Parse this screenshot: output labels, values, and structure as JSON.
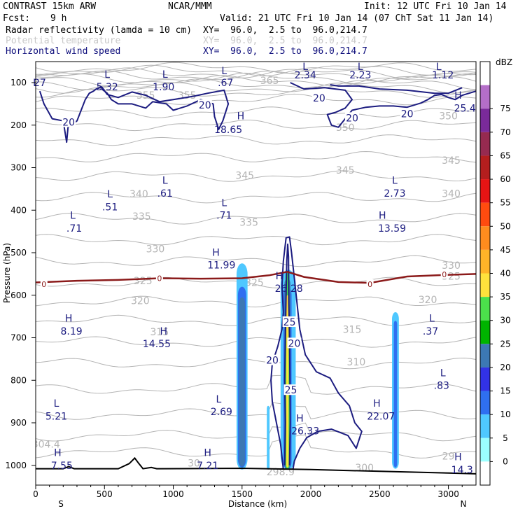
{
  "header": {
    "model": "CONTRAST 15km ARW",
    "org": "NCAR/MMM",
    "init": "Init: 12 UTC Fri 10 Jan 14",
    "fcst_label": "Fcst:",
    "fcst_value": "9 h",
    "valid": "Valid: 21 UTC Fri 10 Jan 14 (07 ChT Sat 11 Jan 14)",
    "fields": [
      {
        "name": "Radar reflectivity (lamda = 10 cm)",
        "xy": "XY=  96.0,  2.5 to  96.0,214.7"
      },
      {
        "name": "Potential temperature",
        "xy": "XY=  96.0,  2.5 to  96.0,214.7"
      },
      {
        "name": "Horizontal wind speed",
        "xy": "XY=  96.0,  2.5 to  96.0,214.7"
      }
    ]
  },
  "colors": {
    "theta": "#b4b4b4",
    "wind": "#1c1c80",
    "freezing": "#8b1a1a",
    "terrain": "#000000"
  },
  "chart_data": {
    "type": "cross-section",
    "xlabel": "Distance (km)",
    "ylabel": "Pressure (hPa)",
    "xlim": [
      0,
      3200
    ],
    "ylim": [
      1060,
      50
    ],
    "xticks": [
      0,
      500,
      1000,
      1500,
      2000,
      2500,
      3000
    ],
    "yticks": [
      100,
      200,
      300,
      400,
      500,
      600,
      700,
      800,
      900,
      1000
    ],
    "end_labels": {
      "left": "S",
      "right": "N"
    },
    "colorbar": {
      "unit": "dBZ",
      "levels": [
        0,
        5,
        10,
        15,
        20,
        25,
        30,
        35,
        40,
        45,
        50,
        55,
        60,
        65,
        70,
        75
      ],
      "colors": [
        "#ffffff",
        "#9bffff",
        "#4fc8ff",
        "#2f6ff0",
        "#3232e6",
        "#3c78b4",
        "#00b400",
        "#4be04b",
        "#ffe23c",
        "#ffb428",
        "#ff8c1e",
        "#ff4b0f",
        "#e61414",
        "#b41e1e",
        "#962a50",
        "#7a2a9a",
        "#b46ec8",
        "#ffffff"
      ]
    },
    "theta_labels": [
      {
        "text": "365",
        "x": 1700,
        "p": 95
      },
      {
        "text": "355",
        "x": 800,
        "p": 130
      },
      {
        "text": "355",
        "x": 1100,
        "p": 130
      },
      {
        "text": "350",
        "x": 2250,
        "p": 205
      },
      {
        "text": "350",
        "x": 3000,
        "p": 178
      },
      {
        "text": "345",
        "x": 1520,
        "p": 318
      },
      {
        "text": "345",
        "x": 2250,
        "p": 306
      },
      {
        "text": "345",
        "x": 3020,
        "p": 283
      },
      {
        "text": "340",
        "x": 750,
        "p": 362
      },
      {
        "text": "340",
        "x": 3020,
        "p": 361
      },
      {
        "text": "335",
        "x": 770,
        "p": 414
      },
      {
        "text": "335",
        "x": 1550,
        "p": 428
      },
      {
        "text": "330",
        "x": 870,
        "p": 491
      },
      {
        "text": "330",
        "x": 3020,
        "p": 530
      },
      {
        "text": "325",
        "x": 780,
        "p": 566
      },
      {
        "text": "325",
        "x": 1590,
        "p": 570
      },
      {
        "text": "325",
        "x": 3020,
        "p": 555
      },
      {
        "text": "320",
        "x": 760,
        "p": 613
      },
      {
        "text": "320",
        "x": 2850,
        "p": 610
      },
      {
        "text": "315",
        "x": 900,
        "p": 686
      },
      {
        "text": "315",
        "x": 2300,
        "p": 680
      },
      {
        "text": "310",
        "x": 2330,
        "p": 757
      },
      {
        "text": "304.4",
        "x": 75,
        "p": 950
      },
      {
        "text": "30",
        "x": 1150,
        "p": 995
      },
      {
        "text": "298.9",
        "x": 1780,
        "p": 1015
      },
      {
        "text": "300",
        "x": 2390,
        "p": 1005
      },
      {
        "text": "29",
        "x": 3000,
        "p": 978
      }
    ],
    "wind_labels": [
      {
        "text": "20",
        "x": 240,
        "p": 193
      },
      {
        "text": "20",
        "x": 1230,
        "p": 153
      },
      {
        "text": "20",
        "x": 2060,
        "p": 136
      },
      {
        "text": "20",
        "x": 2300,
        "p": 183
      },
      {
        "text": "20",
        "x": 2700,
        "p": 173
      },
      {
        "text": "20",
        "x": 1720,
        "p": 753
      },
      {
        "text": "20",
        "x": 1880,
        "p": 713
      },
      {
        "text": "25",
        "x": 1845,
        "p": 663
      },
      {
        "text": "25",
        "x": 1855,
        "p": 823
      }
    ],
    "freezing_label": {
      "text": "0",
      "x": 60,
      "p": 574
    },
    "freezing_labels_more": [
      {
        "text": "0",
        "x": 900,
        "p": 560
      },
      {
        "text": "0",
        "x": 2430,
        "p": 574
      },
      {
        "text": "0",
        "x": 2970,
        "p": 551
      }
    ],
    "extrema": [
      {
        "kind": "L",
        "value": "27",
        "x": 30,
        "p": 100,
        "lx": 0,
        "lp": 100
      },
      {
        "kind": "L",
        "value": "5.32",
        "x": 520,
        "p": 110,
        "lx": 520,
        "lp": 80
      },
      {
        "kind": "L",
        "value": "1.90",
        "x": 930,
        "p": 110,
        "lx": 940,
        "lp": 80
      },
      {
        "kind": "L",
        "value": ".67",
        "x": 1380,
        "p": 100,
        "lx": 1370,
        "lp": 72
      },
      {
        "kind": "L",
        "value": "2.34",
        "x": 1960,
        "p": 82,
        "lx": 1960,
        "lp": 62
      },
      {
        "kind": "L",
        "value": "2.23",
        "x": 2360,
        "p": 82,
        "lx": 2360,
        "lp": 62
      },
      {
        "kind": "L",
        "value": "1.12",
        "x": 2960,
        "p": 82,
        "lx": 2930,
        "lp": 62
      },
      {
        "kind": "H",
        "value": "25.4",
        "x": 3120,
        "p": 160,
        "lx": 3070,
        "lp": 130
      },
      {
        "kind": "H",
        "value": "18.65",
        "x": 1400,
        "p": 210,
        "lx": 1490,
        "lp": 178
      },
      {
        "kind": "L",
        "value": ".61",
        "x": 940,
        "p": 360,
        "lx": 940,
        "lp": 330
      },
      {
        "kind": "L",
        "value": ".51",
        "x": 540,
        "p": 392,
        "lx": 540,
        "lp": 362
      },
      {
        "kind": "L",
        "value": "2.73",
        "x": 2610,
        "p": 360,
        "lx": 2610,
        "lp": 330
      },
      {
        "kind": "L",
        "value": ".71",
        "x": 1370,
        "p": 412,
        "lx": 1370,
        "lp": 382
      },
      {
        "kind": "L",
        "value": ".71",
        "x": 280,
        "p": 442,
        "lx": 270,
        "lp": 412
      },
      {
        "kind": "H",
        "value": "13.59",
        "x": 2590,
        "p": 442,
        "lx": 2520,
        "lp": 412
      },
      {
        "kind": "H",
        "value": "11.99",
        "x": 1350,
        "p": 529,
        "lx": 1310,
        "lp": 499
      },
      {
        "kind": "H",
        "value": "26.28",
        "x": 1840,
        "p": 584,
        "lx": 1770,
        "lp": 554
      },
      {
        "kind": "H",
        "value": "8.19",
        "x": 260,
        "p": 684,
        "lx": 240,
        "lp": 654
      },
      {
        "kind": "H",
        "value": "14.55",
        "x": 880,
        "p": 714,
        "lx": 930,
        "lp": 684
      },
      {
        "kind": "L",
        "value": ".37",
        "x": 2870,
        "p": 684,
        "lx": 2880,
        "lp": 654
      },
      {
        "kind": "L",
        "value": ".83",
        "x": 2950,
        "p": 812,
        "lx": 2960,
        "lp": 782
      },
      {
        "kind": "L",
        "value": "5.21",
        "x": 150,
        "p": 884,
        "lx": 150,
        "lp": 854
      },
      {
        "kind": "L",
        "value": "2.69",
        "x": 1350,
        "p": 874,
        "lx": 1330,
        "lp": 844
      },
      {
        "kind": "H",
        "value": "22.07",
        "x": 2510,
        "p": 884,
        "lx": 2480,
        "lp": 854
      },
      {
        "kind": "H",
        "value": "26.33",
        "x": 1960,
        "p": 919,
        "lx": 1920,
        "lp": 889
      },
      {
        "kind": "H",
        "value": "7.55",
        "x": 190,
        "p": 1000,
        "lx": 160,
        "lp": 970
      },
      {
        "kind": "H",
        "value": "7.21",
        "x": 1250,
        "p": 1000,
        "lx": 1250,
        "lp": 970
      },
      {
        "kind": "H",
        "value": "14.3",
        "x": 3100,
        "p": 1010,
        "lx": 3070,
        "lp": 980
      }
    ],
    "terrain": [
      [
        0,
        1008
      ],
      [
        200,
        1008
      ],
      [
        240,
        1003
      ],
      [
        280,
        1008
      ],
      [
        600,
        1008
      ],
      [
        680,
        996
      ],
      [
        720,
        983
      ],
      [
        750,
        996
      ],
      [
        780,
        1008
      ],
      [
        840,
        1005
      ],
      [
        880,
        1008
      ],
      [
        1500,
        1007
      ],
      [
        2000,
        1010
      ],
      [
        2500,
        1014
      ],
      [
        3000,
        1018
      ],
      [
        3200,
        1020
      ]
    ],
    "freezing_level": [
      [
        0,
        570
      ],
      [
        300,
        566
      ],
      [
        600,
        564
      ],
      [
        900,
        560
      ],
      [
        1200,
        561
      ],
      [
        1500,
        560
      ],
      [
        1700,
        553
      ],
      [
        1830,
        545
      ],
      [
        1950,
        557
      ],
      [
        2200,
        569
      ],
      [
        2430,
        571
      ],
      [
        2700,
        556
      ],
      [
        3000,
        552
      ],
      [
        3200,
        550
      ]
    ],
    "reflectivity_cells": [
      {
        "x0": 1460,
        "x1": 1540,
        "pTop": 525,
        "pBot": 1010,
        "dbz": 8
      },
      {
        "x0": 1470,
        "x1": 1530,
        "pTop": 580,
        "pBot": 1005,
        "dbz": 12
      },
      {
        "x0": 1478,
        "x1": 1522,
        "pTop": 605,
        "pBot": 1003,
        "dbz": 20
      },
      {
        "x0": 1680,
        "x1": 1700,
        "pTop": 860,
        "pBot": 1010,
        "dbz": 8
      },
      {
        "x0": 1780,
        "x1": 1890,
        "pTop": 540,
        "pBot": 1010,
        "dbz": 8
      },
      {
        "x0": 1800,
        "x1": 1860,
        "pTop": 580,
        "pBot": 1010,
        "dbz": 12
      },
      {
        "x0": 1808,
        "x1": 1852,
        "pTop": 560,
        "pBot": 1010,
        "dbz": 22
      },
      {
        "x0": 1815,
        "x1": 1845,
        "pTop": 545,
        "pBot": 1008,
        "dbz": 30
      },
      {
        "x0": 1822,
        "x1": 1838,
        "pTop": 600,
        "pBot": 1005,
        "dbz": 38
      },
      {
        "x0": 2590,
        "x1": 2640,
        "pTop": 640,
        "pBot": 1008,
        "dbz": 8
      },
      {
        "x0": 2603,
        "x1": 2627,
        "pTop": 660,
        "pBot": 1005,
        "dbz": 12
      }
    ],
    "wind_contours": [
      [
        [
          30,
          120
        ],
        [
          60,
          150
        ],
        [
          120,
          185
        ],
        [
          200,
          190
        ],
        [
          225,
          240
        ],
        [
          235,
          205
        ],
        [
          300,
          190
        ],
        [
          330,
          165
        ],
        [
          360,
          140
        ],
        [
          390,
          125
        ],
        [
          420,
          120
        ],
        [
          440,
          115
        ],
        [
          480,
          110
        ],
        [
          520,
          128
        ],
        [
          600,
          135
        ],
        [
          700,
          122
        ],
        [
          800,
          130
        ],
        [
          900,
          145
        ],
        [
          1000,
          140
        ],
        [
          1150,
          132
        ],
        [
          1250,
          125
        ],
        [
          1370,
          118
        ],
        [
          1400,
          150
        ],
        [
          1360,
          190
        ],
        [
          1330,
          210
        ],
        [
          1300,
          180
        ],
        [
          1290,
          150
        ],
        [
          1200,
          140
        ],
        [
          1100,
          155
        ],
        [
          1000,
          165
        ],
        [
          950,
          150
        ],
        [
          850,
          145
        ],
        [
          800,
          160
        ],
        [
          700,
          150
        ],
        [
          600,
          150
        ],
        [
          550,
          140
        ],
        [
          520,
          125
        ],
        [
          480,
          115
        ]
      ],
      [
        [
          1850,
          100
        ],
        [
          1950,
          115
        ],
        [
          2100,
          112
        ],
        [
          2250,
          118
        ],
        [
          2300,
          140
        ],
        [
          2250,
          160
        ],
        [
          2180,
          170
        ],
        [
          2120,
          175
        ],
        [
          2150,
          200
        ],
        [
          2200,
          205
        ],
        [
          2250,
          185
        ],
        [
          2300,
          165
        ],
        [
          2400,
          158
        ],
        [
          2500,
          155
        ],
        [
          2600,
          155
        ],
        [
          2700,
          158
        ],
        [
          2800,
          148
        ],
        [
          2850,
          140
        ],
        [
          2900,
          130
        ],
        [
          2950,
          128
        ],
        [
          3000,
          135
        ],
        [
          3050,
          140
        ],
        [
          3100,
          130
        ],
        [
          3200,
          120
        ]
      ],
      [
        [
          2140,
          105
        ],
        [
          2200,
          108
        ],
        [
          2350,
          108
        ],
        [
          2500,
          115
        ],
        [
          2700,
          118
        ],
        [
          2900,
          125
        ],
        [
          3000,
          125
        ],
        [
          3100,
          112
        ]
      ],
      [
        [
          1800,
          1010
        ],
        [
          1780,
          950
        ],
        [
          1750,
          900
        ],
        [
          1720,
          850
        ],
        [
          1710,
          800
        ],
        [
          1720,
          760
        ],
        [
          1760,
          720
        ],
        [
          1790,
          680
        ],
        [
          1800,
          640
        ],
        [
          1790,
          580
        ],
        [
          1800,
          520
        ],
        [
          1820,
          465
        ],
        [
          1845,
          463
        ],
        [
          1860,
          500
        ],
        [
          1880,
          560
        ],
        [
          1900,
          620
        ],
        [
          1920,
          680
        ],
        [
          1960,
          740
        ],
        [
          2040,
          780
        ],
        [
          2140,
          795
        ],
        [
          2200,
          830
        ],
        [
          2280,
          860
        ],
        [
          2320,
          900
        ],
        [
          2370,
          920
        ],
        [
          2330,
          960
        ],
        [
          2270,
          930
        ],
        [
          2150,
          915
        ],
        [
          2050,
          920
        ],
        [
          1970,
          935
        ],
        [
          1920,
          960
        ],
        [
          1880,
          990
        ],
        [
          1870,
          1010
        ]
      ],
      [
        [
          1810,
          1000
        ],
        [
          1815,
          900
        ],
        [
          1810,
          800
        ],
        [
          1815,
          700
        ],
        [
          1820,
          600
        ],
        [
          1825,
          520
        ],
        [
          1832,
          480
        ],
        [
          1838,
          510
        ],
        [
          1840,
          620
        ],
        [
          1845,
          700
        ],
        [
          1848,
          800
        ],
        [
          1850,
          900
        ],
        [
          1845,
          1000
        ]
      ]
    ]
  }
}
